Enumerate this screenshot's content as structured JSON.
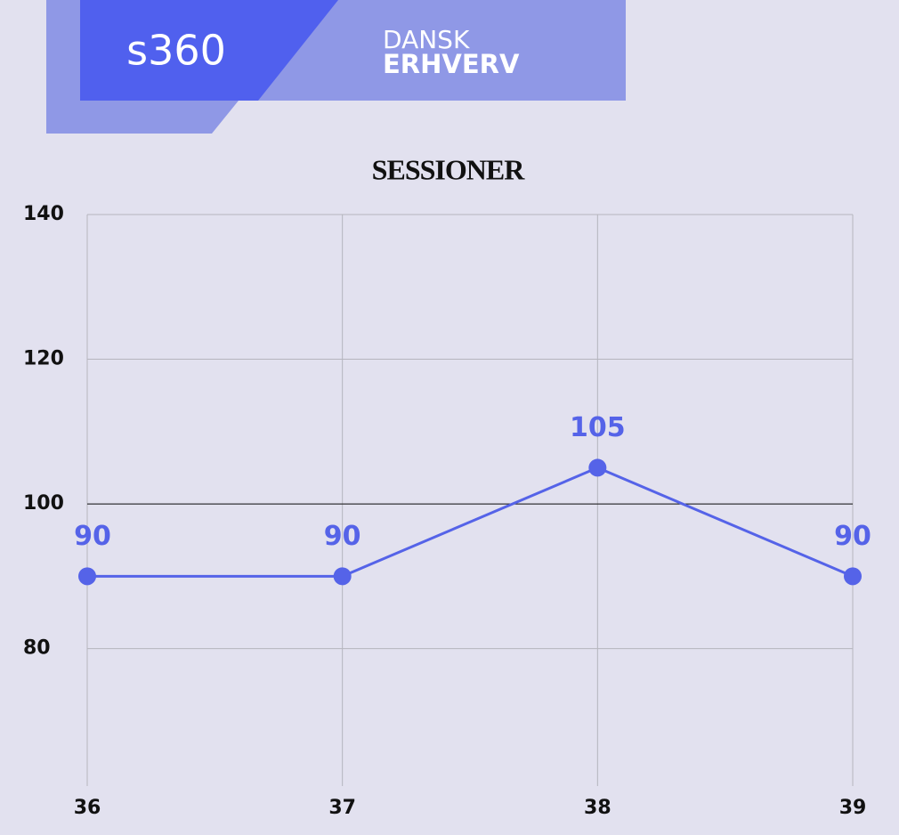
{
  "logo": {
    "brand": "s360",
    "partner_top": "DANSK",
    "partner_bottom": "ERHVERV"
  },
  "chart_data": {
    "type": "line",
    "title": "SESSIONER",
    "x": [
      36,
      37,
      38,
      39
    ],
    "xlim": [
      36,
      39
    ],
    "xticks": [
      36,
      37,
      38,
      39
    ],
    "series": [
      {
        "name": "Sessioner",
        "color": "#5563e8",
        "values": [
          90,
          90,
          105,
          90
        ]
      }
    ],
    "ylim": [
      61,
      140
    ],
    "yticks": [
      80,
      100,
      120,
      140
    ],
    "grid": true,
    "reference_line": 100
  }
}
